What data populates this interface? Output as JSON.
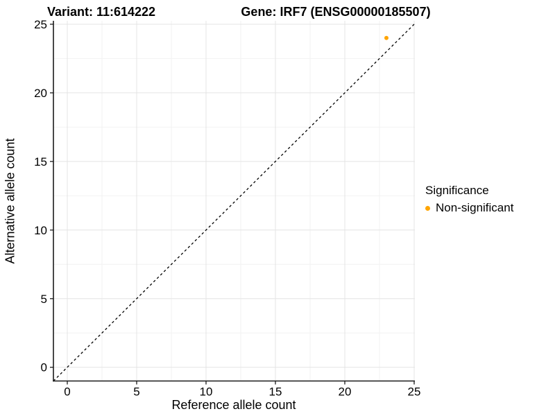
{
  "chart_data": {
    "type": "scatter",
    "titles": {
      "variant": "Variant: 11:614222",
      "gene": "Gene: IRF7 (ENSG00000185507)"
    },
    "xlabel": "Reference allele count",
    "ylabel": "Alternative allele count",
    "xlim": [
      -1,
      25.05
    ],
    "ylim": [
      -1,
      25.25
    ],
    "xticks": [
      0,
      5,
      10,
      15,
      20,
      25
    ],
    "yticks": [
      0,
      5,
      10,
      15,
      20,
      25
    ],
    "x_minor_ticks": [
      2.5,
      7.5,
      12.5,
      17.5,
      22.5
    ],
    "y_minor_ticks": [
      2.5,
      7.5,
      12.5,
      17.5,
      22.5
    ],
    "grid": "major+minor",
    "identity_line": {
      "equation": "y = x",
      "style": "dashed",
      "color": "#000000"
    },
    "series": [
      {
        "name": "Non-significant",
        "color": "#FFA500",
        "marker": "circle",
        "points": [
          {
            "x": 23,
            "y": 24
          }
        ]
      }
    ],
    "legend": {
      "title": "Significance",
      "position": "right",
      "entries": [
        {
          "label": "Non-significant",
          "color": "#FFA500"
        }
      ]
    },
    "colors": {
      "background": "#FFFFFF",
      "grid_major": "#E4E4E4",
      "grid_minor": "#F2F2F2",
      "axis": "#1A1A1A",
      "text": "#000000"
    }
  }
}
